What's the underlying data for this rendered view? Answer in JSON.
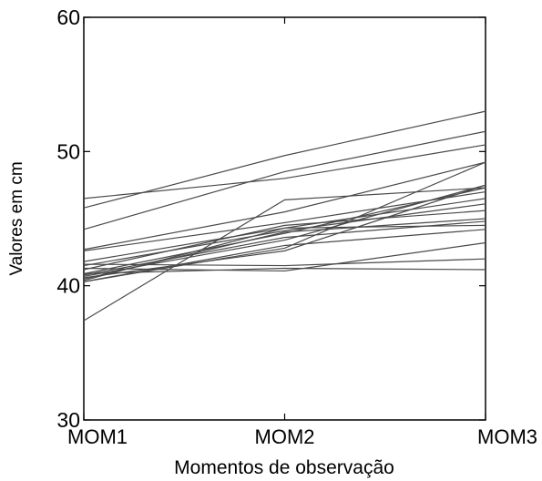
{
  "chart_data": {
    "type": "line",
    "title": "",
    "xlabel": "Momentos de observação",
    "ylabel": "Valores em cm",
    "categories": [
      "MOM1",
      "MOM2",
      "MOM3"
    ],
    "ylim": [
      30,
      60
    ],
    "yticks": [
      30,
      40,
      50,
      60
    ],
    "grid": false,
    "legend": "none",
    "line_color": "#4a4a4a",
    "series": [
      {
        "values": [
          46.5,
          48.0,
          50.5
        ]
      },
      {
        "values": [
          45.8,
          49.7,
          53.0
        ]
      },
      {
        "values": [
          44.2,
          48.5,
          51.5
        ]
      },
      {
        "values": [
          42.7,
          45.5,
          49.2
        ]
      },
      {
        "values": [
          42.6,
          44.7,
          47.0
        ]
      },
      {
        "values": [
          41.8,
          44.3,
          46.5
        ]
      },
      {
        "values": [
          41.5,
          44.1,
          46.1
        ]
      },
      {
        "values": [
          41.2,
          44.5,
          45.6
        ]
      },
      {
        "values": [
          40.9,
          43.9,
          47.3
        ]
      },
      {
        "values": [
          40.7,
          43.4,
          47.5
        ]
      },
      {
        "values": [
          40.6,
          42.6,
          47.5
        ]
      },
      {
        "values": [
          40.5,
          44.0,
          45.0
        ]
      },
      {
        "values": [
          40.4,
          44.3,
          44.5
        ]
      },
      {
        "values": [
          40.3,
          43.0,
          44.2
        ]
      },
      {
        "values": [
          37.4,
          46.4,
          47.3
        ]
      },
      {
        "values": [
          40.9,
          41.3,
          41.2
        ]
      },
      {
        "values": [
          41.3,
          41.1,
          43.2
        ]
      },
      {
        "values": [
          40.3,
          42.8,
          49.2
        ]
      },
      {
        "values": [
          41.6,
          41.5,
          42.0
        ]
      },
      {
        "values": [
          40.8,
          43.6,
          44.8
        ]
      }
    ]
  }
}
